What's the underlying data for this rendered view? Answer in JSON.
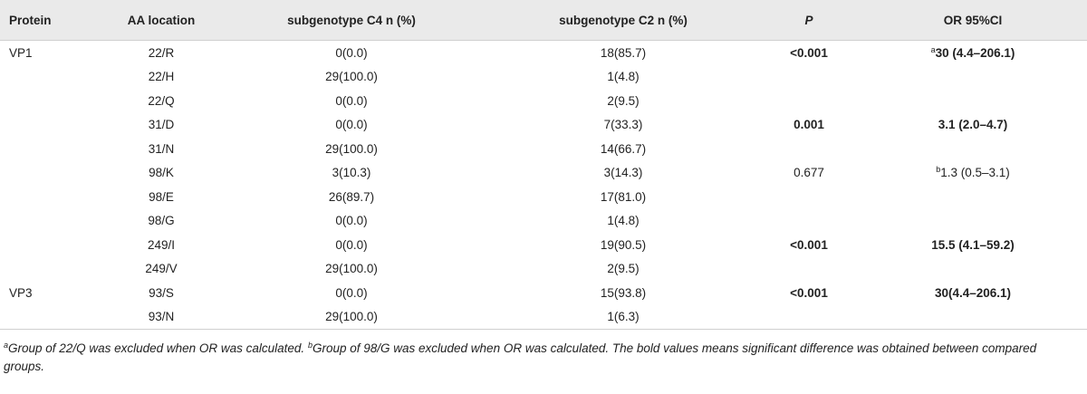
{
  "table": {
    "headers": {
      "protein": "Protein",
      "aa_location": "AA location",
      "c4": "subgenotype C4 n (%)",
      "c2": "subgenotype C2 n (%)",
      "p": "P",
      "or": "OR 95%CI"
    },
    "rows": [
      {
        "protein": "VP1",
        "aa": "22/R",
        "c4": "0(0.0)",
        "c2": "18(85.7)",
        "p": "<0.001",
        "p_bold": true,
        "or_sup": "a",
        "or": "30 (4.4–206.1)",
        "or_bold": true
      },
      {
        "protein": "",
        "aa": "22/H",
        "c4": "29(100.0)",
        "c2": "1(4.8)",
        "p": "",
        "or_sup": "",
        "or": ""
      },
      {
        "protein": "",
        "aa": "22/Q",
        "c4": "0(0.0)",
        "c2": "2(9.5)",
        "p": "",
        "or_sup": "",
        "or": ""
      },
      {
        "protein": "",
        "aa": "31/D",
        "c4": "0(0.0)",
        "c2": "7(33.3)",
        "p": "0.001",
        "p_bold": true,
        "or_sup": "",
        "or": "3.1 (2.0–4.7)",
        "or_bold": true
      },
      {
        "protein": "",
        "aa": "31/N",
        "c4": "29(100.0)",
        "c2": "14(66.7)",
        "p": "",
        "or_sup": "",
        "or": ""
      },
      {
        "protein": "",
        "aa": "98/K",
        "c4": "3(10.3)",
        "c2": "3(14.3)",
        "p": "0.677",
        "p_bold": false,
        "or_sup": "b",
        "or": "1.3 (0.5–3.1)",
        "or_bold": false
      },
      {
        "protein": "",
        "aa": "98/E",
        "c4": "26(89.7)",
        "c2": "17(81.0)",
        "p": "",
        "or_sup": "",
        "or": ""
      },
      {
        "protein": "",
        "aa": "98/G",
        "c4": "0(0.0)",
        "c2": "1(4.8)",
        "p": "",
        "or_sup": "",
        "or": ""
      },
      {
        "protein": "",
        "aa": "249/I",
        "c4": "0(0.0)",
        "c2": "19(90.5)",
        "p": "<0.001",
        "p_bold": true,
        "or_sup": "",
        "or": "15.5 (4.1–59.2)",
        "or_bold": true
      },
      {
        "protein": "",
        "aa": "249/V",
        "c4": "29(100.0)",
        "c2": "2(9.5)",
        "p": "",
        "or_sup": "",
        "or": ""
      },
      {
        "protein": "VP3",
        "aa": "93/S",
        "c4": "0(0.0)",
        "c2": "15(93.8)",
        "p": "<0.001",
        "p_bold": true,
        "or_sup": "",
        "or": "30(4.4–206.1)",
        "or_bold": true
      },
      {
        "protein": "",
        "aa": "93/N",
        "c4": "29(100.0)",
        "c2": "1(6.3)",
        "p": "",
        "or_sup": "",
        "or": ""
      }
    ]
  },
  "footnote": {
    "sup_a": "a",
    "text_a": "Group of 22/Q was excluded when OR was calculated. ",
    "sup_b": "b",
    "text_b": "Group of 98/G was excluded when OR was calculated. The bold values means significant difference was obtained between compared groups."
  }
}
